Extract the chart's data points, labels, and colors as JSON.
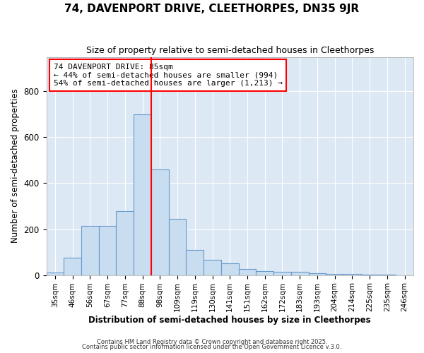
{
  "title1": "74, DAVENPORT DRIVE, CLEETHORPES, DN35 9JR",
  "title2": "Size of property relative to semi-detached houses in Cleethorpes",
  "xlabel": "Distribution of semi-detached houses by size in Cleethorpes",
  "ylabel": "Number of semi-detached properties",
  "categories": [
    "35sqm",
    "46sqm",
    "56sqm",
    "67sqm",
    "77sqm",
    "88sqm",
    "98sqm",
    "109sqm",
    "119sqm",
    "130sqm",
    "141sqm",
    "151sqm",
    "162sqm",
    "172sqm",
    "183sqm",
    "193sqm",
    "204sqm",
    "214sqm",
    "225sqm",
    "235sqm",
    "246sqm"
  ],
  "values": [
    12,
    75,
    215,
    215,
    280,
    700,
    460,
    245,
    110,
    65,
    52,
    27,
    17,
    15,
    13,
    8,
    5,
    5,
    2,
    1,
    0
  ],
  "bar_color": "#c9ddf0",
  "bar_edge_color": "#6699cc",
  "red_line_x": 5.5,
  "annotation_line1": "74 DAVENPORT DRIVE: 85sqm",
  "annotation_line2": "← 44% of semi-detached houses are smaller (994)",
  "annotation_line3": "54% of semi-detached houses are larger (1,213) →",
  "footer1": "Contains HM Land Registry data © Crown copyright and database right 2025.",
  "footer2": "Contains public sector information licensed under the Open Government Licence v.3.0.",
  "ylim": [
    0,
    950
  ],
  "plot_bg_color": "#dde8f5",
  "fig_bg_color": "#ffffff",
  "grid_color": "#ffffff"
}
